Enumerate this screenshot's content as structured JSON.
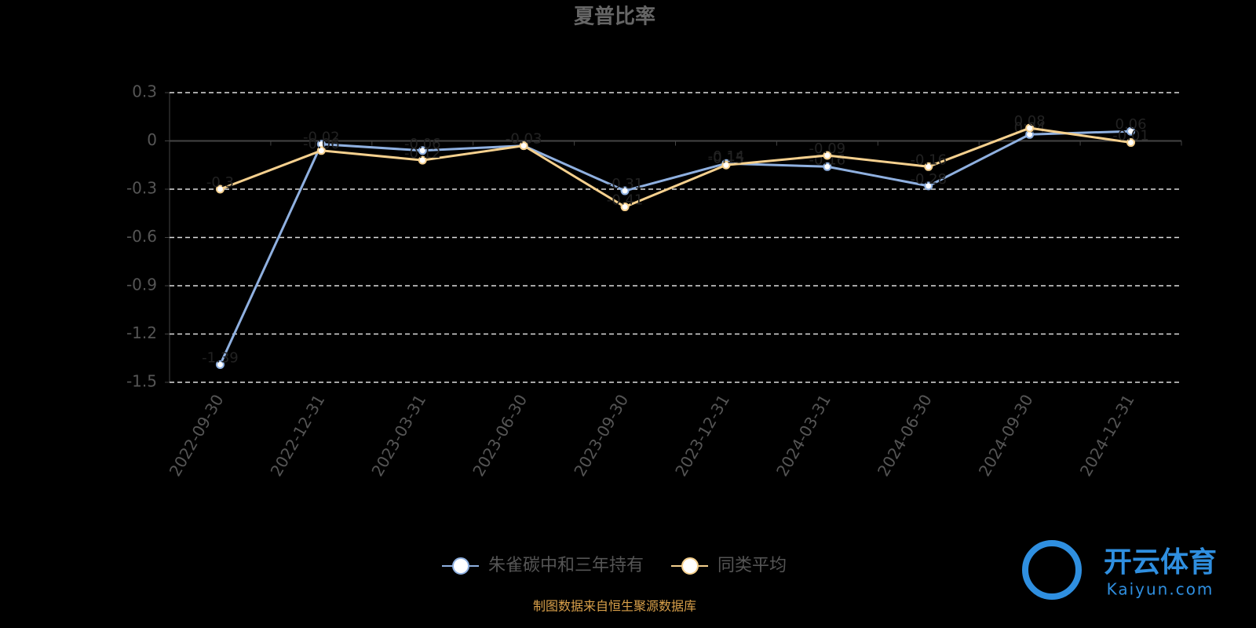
{
  "chart_data": {
    "type": "line",
    "title": "夏普比率",
    "categories": [
      "2022-09-30",
      "2022-12-31",
      "2023-03-31",
      "2023-06-30",
      "2023-09-30",
      "2023-12-31",
      "2024-03-31",
      "2024-06-30",
      "2024-09-30",
      "2024-12-31"
    ],
    "series": [
      {
        "name": "朱雀碳中和三年持有",
        "color": "#8fb0e0",
        "values": [
          -1.39,
          -0.02,
          -0.06,
          -0.03,
          -0.31,
          -0.14,
          -0.16,
          -0.28,
          0.04,
          0.06
        ]
      },
      {
        "name": "同类平均",
        "color": "#f5d08e",
        "values": [
          -0.3,
          -0.06,
          -0.12,
          -0.03,
          -0.41,
          -0.15,
          -0.09,
          -0.16,
          0.08,
          -0.01
        ]
      }
    ],
    "ylim": [
      -1.5,
      0.3
    ],
    "yticks": [
      0.3,
      0,
      -0.3,
      -0.6,
      -0.9,
      -1.2,
      -1.5
    ],
    "grid": true,
    "legend": "bottom",
    "footer": "制图数据来自恒生聚源数据库",
    "watermark": {
      "brand": "开云体育",
      "site": "Kaiyun.com"
    }
  }
}
